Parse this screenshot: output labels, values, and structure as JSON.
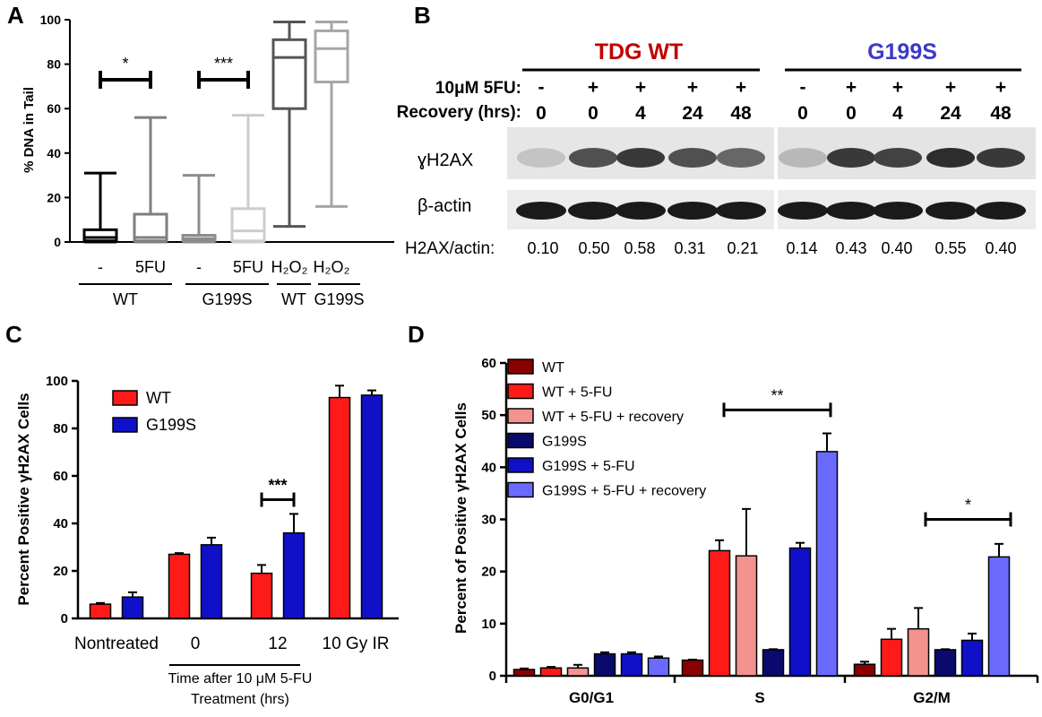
{
  "colors": {
    "dark_red": "#8b0000",
    "red": "#ff1a1a",
    "pink": "#f2938f",
    "navy": "#0a0a6e",
    "blue": "#1010c8",
    "light_blue": "#6a6aff",
    "tdg_red": "#c00000",
    "g199s_blue": "#3a3ac8"
  },
  "panels": {
    "A": "A",
    "B": "B",
    "C": "C",
    "D": "D"
  },
  "chart_data": [
    {
      "panel": "A",
      "type": "box",
      "ylabel": "% DNA in Tail",
      "ylim": [
        0,
        100
      ],
      "yticks": [
        "0",
        "20",
        "40",
        "60",
        "80",
        "100"
      ],
      "categories": [
        "-",
        "5FU",
        "-",
        "5FU",
        "H₂O₂",
        "H₂O₂"
      ],
      "groups": [
        {
          "label": "WT",
          "span": [
            0,
            1
          ]
        },
        {
          "label": "G199S",
          "span": [
            2,
            3
          ]
        },
        {
          "label": "WT",
          "span": [
            4,
            4
          ]
        },
        {
          "label": "G199S",
          "span": [
            5,
            5
          ]
        }
      ],
      "boxes": [
        {
          "min": 0,
          "q1": 0.5,
          "median": 2,
          "q3": 5.5,
          "max": 31,
          "color": "#000000"
        },
        {
          "min": 0,
          "q1": 0.5,
          "median": 2,
          "q3": 12.5,
          "max": 56,
          "color": "#7f7f7f"
        },
        {
          "min": 0,
          "q1": 0.5,
          "median": 1.5,
          "q3": 3,
          "max": 30,
          "color": "#8c8c8c"
        },
        {
          "min": 0,
          "q1": 0.5,
          "median": 5,
          "q3": 15,
          "max": 57,
          "color": "#cccccc"
        },
        {
          "min": 7,
          "q1": 60,
          "median": 83,
          "q3": 91,
          "max": 99,
          "color": "#555555"
        },
        {
          "min": 16,
          "q1": 72,
          "median": 87,
          "q3": 95,
          "max": 99,
          "color": "#a6a6a6"
        }
      ],
      "significance": [
        {
          "from": 0,
          "to": 1,
          "y": 73,
          "label": "*"
        },
        {
          "from": 2,
          "to": 3,
          "y": 73,
          "label": "***"
        }
      ]
    },
    {
      "panel": "B",
      "type": "table",
      "groups": [
        {
          "label": "TDG WT",
          "color": "#c00000"
        },
        {
          "label": "G199S",
          "color": "#3a3ac8"
        }
      ],
      "row_labels": [
        "10μM 5FU:",
        "Recovery (hrs):"
      ],
      "fivefu": [
        "-",
        "+",
        "+",
        "+",
        "+",
        "-",
        "+",
        "+",
        "+",
        "+"
      ],
      "recovery": [
        "0",
        "0",
        "4",
        "24",
        "48",
        "0",
        "0",
        "4",
        "24",
        "48"
      ],
      "blot_labels": [
        "ɣH2AX",
        "β-actin"
      ],
      "ratio_label": "H2AX/actin:",
      "ratios": [
        "0.10",
        "0.50",
        "0.58",
        "0.31",
        "0.21",
        "0.14",
        "0.43",
        "0.40",
        "0.55",
        "0.40"
      ],
      "h2ax_intensity": [
        0.1,
        0.5,
        0.58,
        0.5,
        0.42,
        0.14,
        0.58,
        0.55,
        0.62,
        0.58
      ]
    },
    {
      "panel": "C",
      "type": "bar",
      "ylabel": "Percent Positive γH2AX Cells",
      "ylim": [
        0,
        100
      ],
      "yticks": [
        "0",
        "20",
        "40",
        "60",
        "80",
        "100"
      ],
      "categories": [
        "Nontreated",
        "0",
        "12",
        "10 Gy IR"
      ],
      "xlabel_line1": "Time after 10 μM 5-FU",
      "xlabel_line2": "Treatment (hrs)",
      "series": [
        {
          "name": "WT",
          "color": "#ff1a1a",
          "values": [
            6,
            27,
            19,
            93
          ],
          "errors": [
            0.5,
            0.5,
            3.5,
            5
          ]
        },
        {
          "name": "G199S",
          "color": "#1010c8",
          "values": [
            9,
            31,
            36,
            94
          ],
          "errors": [
            2,
            3,
            8,
            2
          ]
        }
      ],
      "significance": [
        {
          "category": 2,
          "y": 50,
          "label": "***"
        }
      ]
    },
    {
      "panel": "D",
      "type": "bar",
      "ylabel": "Percent of Positive γH2AX Cells",
      "ylim": [
        0,
        60
      ],
      "yticks": [
        "0",
        "10",
        "20",
        "30",
        "40",
        "50",
        "60"
      ],
      "categories": [
        "G0/G1",
        "S",
        "G2/M"
      ],
      "series": [
        {
          "name": "WT",
          "color": "#8b0000",
          "values": [
            1.2,
            3,
            2.2
          ],
          "errors": [
            0.2,
            0.1,
            0.5
          ]
        },
        {
          "name": "WT + 5-FU",
          "color": "#ff1a1a",
          "values": [
            1.5,
            24,
            7
          ],
          "errors": [
            0.2,
            2,
            2
          ]
        },
        {
          "name": "WT + 5-FU + recovery",
          "color": "#f2938f",
          "values": [
            1.5,
            23,
            9
          ],
          "errors": [
            0.6,
            9,
            4
          ]
        },
        {
          "name": "G199S",
          "color": "#0a0a6e",
          "values": [
            4.2,
            5,
            5
          ],
          "errors": [
            0.3,
            0.1,
            0.1
          ]
        },
        {
          "name": "G199S + 5-FU",
          "color": "#1010c8",
          "values": [
            4.2,
            24.5,
            6.8
          ],
          "errors": [
            0.3,
            1,
            1.3
          ]
        },
        {
          "name": "G199S + 5-FU + recovery",
          "color": "#6a6aff",
          "values": [
            3.4,
            43,
            22.8
          ],
          "errors": [
            0.3,
            3.5,
            2.5
          ]
        }
      ],
      "significance": [
        {
          "category": 1,
          "y": 51,
          "label": "**"
        },
        {
          "category": 2,
          "y": 30,
          "label": "*"
        }
      ]
    }
  ]
}
